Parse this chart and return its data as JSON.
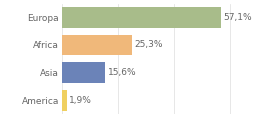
{
  "categories": [
    "Europa",
    "Africa",
    "Asia",
    "America"
  ],
  "values": [
    57.1,
    25.3,
    15.6,
    1.9
  ],
  "bar_colors": [
    "#a8bc8a",
    "#f0b87a",
    "#6b83b8",
    "#f0d060"
  ],
  "labels": [
    "57,1%",
    "25,3%",
    "15,6%",
    "1,9%"
  ],
  "xlim": [
    0,
    70
  ],
  "background_color": "#ffffff",
  "label_fontsize": 6.5,
  "category_fontsize": 6.5,
  "bar_height": 0.75,
  "grid_color": "#dddddd",
  "grid_xticks": [
    0,
    20,
    40,
    60
  ],
  "text_color": "#666666"
}
